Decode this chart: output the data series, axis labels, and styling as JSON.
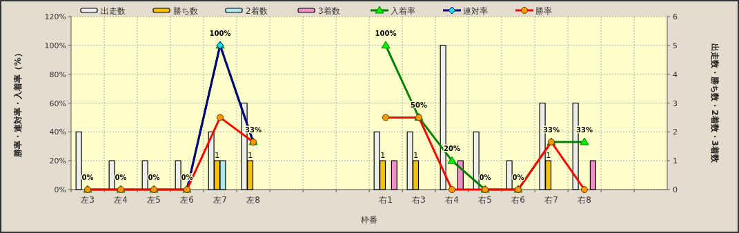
{
  "chart_data": {
    "type": "bar",
    "xlabel": "枠番",
    "ylabel": "勝率・連対率・入着率（%）",
    "y2label": "出走数・勝ち数・2着数・3着数",
    "categories": [
      "左3",
      "左4",
      "左5",
      "左6",
      "左7",
      "左8",
      null,
      null,
      null,
      "右1",
      "右3",
      "右4",
      "右5",
      "右6",
      "右7",
      "右8",
      null,
      null
    ],
    "series": [
      {
        "name": "出走数",
        "axis": "y2",
        "color": "#eeeeee",
        "values": [
          2,
          1,
          1,
          1,
          2,
          3,
          null,
          null,
          null,
          2,
          2,
          5,
          2,
          1,
          3,
          3,
          null,
          null
        ]
      },
      {
        "name": "勝ち数",
        "axis": "y2",
        "color": "#f5c400",
        "values": [
          0,
          0,
          0,
          0,
          1,
          1,
          null,
          null,
          null,
          1,
          1,
          0,
          0,
          0,
          1,
          0,
          null,
          null
        ],
        "value_labels": [
          null,
          null,
          null,
          null,
          "1",
          "1",
          null,
          null,
          null,
          "1",
          "1",
          null,
          null,
          null,
          "1",
          null,
          null,
          null
        ]
      },
      {
        "name": "2着数",
        "axis": "y2",
        "color": "#b0e8f0",
        "values": [
          0,
          0,
          0,
          0,
          1,
          0,
          null,
          null,
          null,
          0,
          0,
          0,
          0,
          0,
          0,
          0,
          null,
          null
        ]
      },
      {
        "name": "3着数",
        "axis": "y2",
        "color": "#f090c8",
        "values": [
          0,
          0,
          0,
          0,
          0,
          0,
          null,
          null,
          null,
          1,
          0,
          1,
          0,
          0,
          0,
          1,
          null,
          null
        ]
      },
      {
        "name": "入着率",
        "type": "line",
        "marker": "triangle",
        "color": "#008000",
        "values": [
          0,
          0,
          0,
          0,
          100,
          33,
          null,
          null,
          null,
          100,
          50,
          20,
          0,
          0,
          33,
          33,
          null,
          null
        ],
        "value_labels": [
          "0%",
          "0%",
          "0%",
          "0%",
          "100%",
          "33%",
          null,
          null,
          null,
          "100%",
          "50%",
          "20%",
          "0%",
          "0%",
          "33%",
          "33%",
          null,
          null
        ]
      },
      {
        "name": "連対率",
        "type": "line",
        "marker": "diamond",
        "color": "#000080",
        "values": [
          null,
          null,
          null,
          0,
          100,
          33,
          null,
          null,
          null,
          null,
          null,
          null,
          null,
          null,
          null,
          null,
          null,
          null
        ]
      },
      {
        "name": "勝率",
        "type": "line",
        "marker": "circle",
        "color": "#ff0000",
        "values": [
          0,
          0,
          0,
          0,
          50,
          33,
          null,
          null,
          null,
          50,
          50,
          0,
          0,
          0,
          33,
          0,
          null,
          null
        ]
      }
    ],
    "ylim": [
      0,
      120
    ],
    "yticks": [
      {
        "value": 0,
        "label": "0%"
      },
      {
        "value": 20,
        "label": "20%"
      },
      {
        "value": 40,
        "label": "40%"
      },
      {
        "value": 60,
        "label": "60%"
      },
      {
        "value": 80,
        "label": "80%"
      },
      {
        "value": 100,
        "label": "100%"
      },
      {
        "value": 120,
        "label": "120%"
      }
    ],
    "y2lim": [
      0,
      6
    ],
    "y2ticks": [
      0,
      1,
      2,
      3,
      4,
      5,
      6
    ],
    "grid": true,
    "legend": "top"
  }
}
